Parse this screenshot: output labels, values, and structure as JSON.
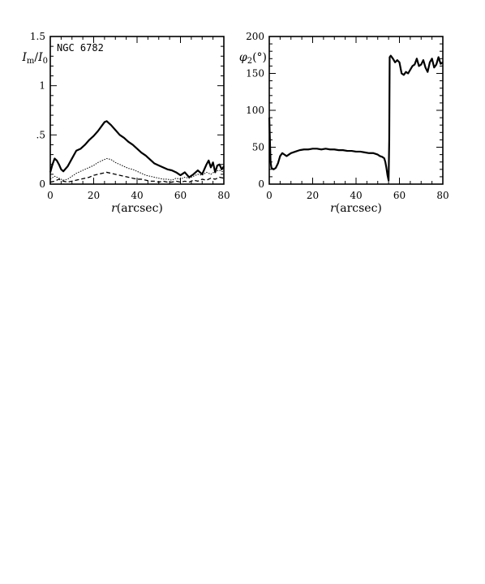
{
  "chart_data": [
    {
      "type": "line",
      "annotation": "NGC 6782",
      "ylabel": "I_m/I_0",
      "xlabel": "r(arcsec)",
      "xlim": [
        0,
        80
      ],
      "ylim": [
        0,
        1.5
      ],
      "xticks": [
        "0",
        "20",
        "40",
        "60",
        "80"
      ],
      "yticks": [
        "0",
        ".5",
        "1",
        "1.5"
      ],
      "ytick_values": [
        0,
        0.5,
        1,
        1.5
      ],
      "series": [
        {
          "style": "solid-thick",
          "x": [
            0,
            1,
            2,
            3,
            4,
            5,
            6,
            8,
            10,
            12,
            14,
            16,
            18,
            20,
            22,
            24,
            25,
            26,
            27,
            28,
            30,
            32,
            34,
            36,
            38,
            40,
            42,
            44,
            46,
            48,
            50,
            52,
            54,
            56,
            58,
            60,
            62,
            64,
            66,
            68,
            70,
            72,
            73,
            74,
            75,
            76,
            77,
            78,
            79,
            80
          ],
          "y": [
            0.12,
            0.2,
            0.26,
            0.24,
            0.2,
            0.15,
            0.13,
            0.18,
            0.26,
            0.34,
            0.36,
            0.4,
            0.45,
            0.49,
            0.54,
            0.6,
            0.63,
            0.64,
            0.62,
            0.6,
            0.55,
            0.5,
            0.47,
            0.43,
            0.4,
            0.36,
            0.32,
            0.29,
            0.25,
            0.21,
            0.19,
            0.17,
            0.15,
            0.14,
            0.12,
            0.09,
            0.12,
            0.07,
            0.1,
            0.14,
            0.1,
            0.2,
            0.24,
            0.17,
            0.22,
            0.12,
            0.19,
            0.2,
            0.15,
            0.18
          ]
        },
        {
          "style": "dotted",
          "x": [
            0,
            2,
            4,
            6,
            8,
            10,
            12,
            14,
            16,
            18,
            20,
            22,
            24,
            26,
            28,
            30,
            32,
            34,
            36,
            38,
            40,
            42,
            44,
            46,
            48,
            50,
            52,
            54,
            56,
            58,
            60,
            62,
            64,
            66,
            68,
            70,
            72,
            74,
            76,
            78,
            80
          ],
          "y": [
            0.05,
            0.08,
            0.06,
            0.04,
            0.05,
            0.08,
            0.11,
            0.13,
            0.15,
            0.17,
            0.19,
            0.22,
            0.24,
            0.26,
            0.25,
            0.22,
            0.2,
            0.18,
            0.16,
            0.15,
            0.13,
            0.11,
            0.09,
            0.08,
            0.07,
            0.06,
            0.05,
            0.05,
            0.04,
            0.06,
            0.05,
            0.07,
            0.06,
            0.08,
            0.1,
            0.09,
            0.12,
            0.1,
            0.13,
            0.14,
            0.12
          ]
        },
        {
          "style": "dashed",
          "x": [
            0,
            2,
            4,
            6,
            8,
            10,
            12,
            14,
            16,
            18,
            20,
            22,
            24,
            26,
            28,
            30,
            32,
            34,
            36,
            38,
            40,
            42,
            44,
            46,
            48,
            50,
            52,
            54,
            56,
            58,
            60,
            62,
            64,
            66,
            68,
            70,
            72,
            74,
            76,
            78,
            80
          ],
          "y": [
            0.02,
            0.03,
            0.05,
            0.03,
            0.02,
            0.03,
            0.04,
            0.05,
            0.06,
            0.07,
            0.09,
            0.1,
            0.11,
            0.12,
            0.11,
            0.1,
            0.09,
            0.08,
            0.07,
            0.06,
            0.05,
            0.05,
            0.04,
            0.03,
            0.03,
            0.02,
            0.03,
            0.02,
            0.02,
            0.03,
            0.02,
            0.03,
            0.02,
            0.04,
            0.03,
            0.05,
            0.04,
            0.06,
            0.05,
            0.07,
            0.06
          ]
        }
      ]
    },
    {
      "type": "line",
      "ylabel": "φ_2(°)",
      "xlabel": "r(arcsec)",
      "xlim": [
        0,
        80
      ],
      "ylim": [
        0,
        200
      ],
      "xticks": [
        "0",
        "20",
        "40",
        "60",
        "80"
      ],
      "yticks": [
        "0",
        "50",
        "100",
        "150",
        "200"
      ],
      "ytick_values": [
        0,
        50,
        100,
        150,
        200
      ],
      "series": [
        {
          "style": "solid-thick",
          "x": [
            0,
            0.3,
            0.6,
            1,
            2,
            3,
            4,
            5,
            6,
            7,
            8,
            10,
            12,
            14,
            16,
            18,
            20,
            22,
            24,
            26,
            28,
            30,
            32,
            34,
            36,
            38,
            40,
            42,
            44,
            46,
            48,
            50,
            51,
            52,
            53,
            53.5,
            54,
            54.5,
            55,
            55.3,
            55.5,
            56,
            57,
            58,
            59,
            60,
            61,
            62,
            63,
            64,
            65,
            66,
            67,
            68,
            69,
            70,
            71,
            72,
            73,
            74,
            75,
            76,
            77,
            78,
            79,
            80
          ],
          "y": [
            90,
            60,
            30,
            22,
            20,
            22,
            28,
            38,
            42,
            40,
            38,
            42,
            44,
            46,
            47,
            47,
            48,
            48,
            47,
            48,
            47,
            47,
            46,
            46,
            45,
            45,
            44,
            44,
            43,
            42,
            42,
            40,
            38,
            37,
            35,
            30,
            22,
            12,
            5,
            60,
            172,
            174,
            170,
            165,
            168,
            165,
            150,
            148,
            152,
            150,
            155,
            160,
            162,
            170,
            160,
            162,
            168,
            158,
            152,
            165,
            170,
            158,
            162,
            172,
            163,
            165
          ]
        }
      ]
    }
  ]
}
